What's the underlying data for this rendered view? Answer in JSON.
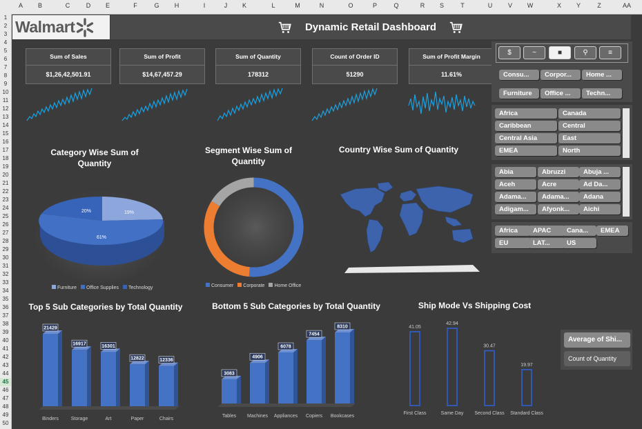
{
  "spreadsheet": {
    "columns": [
      "A",
      "B",
      "C",
      "D",
      "E",
      "F",
      "G",
      "H",
      "I",
      "J",
      "K",
      "L",
      "M",
      "N",
      "O",
      "P",
      "Q",
      "R",
      "S",
      "T",
      "U",
      "V",
      "W",
      "X",
      "Y",
      "Z",
      "AA"
    ],
    "rows": [
      "1",
      "2",
      "3",
      "4",
      "5",
      "6",
      "7",
      "8",
      "9",
      "10",
      "11",
      "12",
      "13",
      "14",
      "15",
      "16",
      "17",
      "18",
      "19",
      "20",
      "21",
      "22",
      "23",
      "24",
      "25",
      "26",
      "27",
      "28",
      "29",
      "30",
      "31",
      "32",
      "33",
      "34",
      "35",
      "36",
      "37",
      "38",
      "39",
      "40",
      "41",
      "42",
      "43",
      "44",
      "45",
      "46",
      "47",
      "48",
      "49",
      "50"
    ],
    "selected_row": "45"
  },
  "header": {
    "logo_text": "Walmart",
    "title": "Dynamic Retail Dashboard"
  },
  "kpis": [
    {
      "label": "Sum of Sales",
      "value": "$1,26,42,501.91"
    },
    {
      "label": "Sum of Profit",
      "value": "$14,67,457.29"
    },
    {
      "label": "Sum of Quantity",
      "value": "178312"
    },
    {
      "label": "Count of Order ID",
      "value": "51290"
    },
    {
      "label": "Sum of Profit Margin",
      "value": "11.61%"
    }
  ],
  "colors": {
    "bg": "#3b3b3b",
    "panel": "#4a4a4a",
    "blue": "#4472c4",
    "orange": "#ed7d31",
    "gray": "#a5a5a5",
    "spark": "#1ba1e2",
    "chip": "#8a8a8a"
  },
  "category_pie": {
    "title": "Category Wise Sum of Quantity",
    "legend": [
      "Furniture",
      "Office Supplies",
      "Technology"
    ],
    "labels": [
      "19%",
      "20%",
      "61%"
    ]
  },
  "segment_donut": {
    "title": "Segment Wise Sum of Quantity",
    "legend": [
      "Consumer",
      "Corporate",
      "Home Office"
    ]
  },
  "map": {
    "title": "Country Wise Sum of Quantity"
  },
  "top5": {
    "title": "Top 5 Sub Categories by Total Quantity"
  },
  "bottom5": {
    "title": "Bottom 5 Sub Categories by Total Quantity"
  },
  "shipmode": {
    "title": "Ship Mode Vs Shipping Cost"
  },
  "field_buttons": {
    "average": "Average of Shi...",
    "count": "Count of Quantity"
  },
  "slicer_toolbar": [
    {
      "icon": "money-bag-icon",
      "glyph": "$"
    },
    {
      "icon": "line-chart-icon",
      "glyph": "~"
    },
    {
      "icon": "box-icon",
      "glyph": "■"
    },
    {
      "icon": "search-icon",
      "glyph": "⚲"
    },
    {
      "icon": "cart-icon",
      "glyph": "≡"
    }
  ],
  "segment_slicer": [
    "Consu...",
    "Corpor...",
    "Home ...",
    "Furniture",
    "Office ...",
    "Techn..."
  ],
  "region_slicer": [
    "Africa",
    "Canada",
    "Caribbean",
    "Central",
    "Central Asia",
    "East",
    "EMEA",
    "North"
  ],
  "state_slicer": [
    "Abia",
    "Abruzzi",
    "Abuja ...",
    "Aceh",
    "Acre",
    "Ad Da...",
    "Adama...",
    "Adama...",
    "Adana",
    "Adigam...",
    "Afyonk...",
    "Aichi"
  ],
  "market_slicer": [
    "Africa",
    "APAC",
    "Cana...",
    "EMEA",
    "EU",
    "LAT...",
    "US"
  ],
  "chart_data": [
    {
      "type": "pie",
      "title": "Category Wise Sum of Quantity",
      "categories": [
        "Furniture",
        "Office Supplies",
        "Technology"
      ],
      "values": [
        19,
        61,
        20
      ],
      "data_labels": [
        "19%",
        "61%",
        "20%"
      ],
      "legend": "bottom"
    },
    {
      "type": "pie",
      "title": "Segment Wise Sum of Quantity",
      "categories": [
        "Consumer",
        "Corporate",
        "Home Office"
      ],
      "values": [
        51,
        30,
        19
      ],
      "donut": true,
      "legend": "bottom"
    },
    {
      "type": "bar",
      "title": "Top 5 Sub Categories by Total Quantity",
      "categories": [
        "Binders",
        "Storage",
        "Art",
        "Paper",
        "Chairs"
      ],
      "values": [
        21429,
        16917,
        16301,
        12822,
        12336
      ]
    },
    {
      "type": "bar",
      "title": "Bottom 5 Sub Categories by Total Quantity",
      "categories": [
        "Tables",
        "Machines",
        "Appliances",
        "Copiers",
        "Bookcases"
      ],
      "values": [
        3083,
        4906,
        6078,
        7454,
        8310
      ]
    },
    {
      "type": "bar",
      "title": "Ship Mode Vs Shipping Cost",
      "categories": [
        "First Class",
        "Same Day",
        "Second Class",
        "Standard Class"
      ],
      "values": [
        41.05,
        42.94,
        30.47,
        19.97
      ]
    }
  ]
}
